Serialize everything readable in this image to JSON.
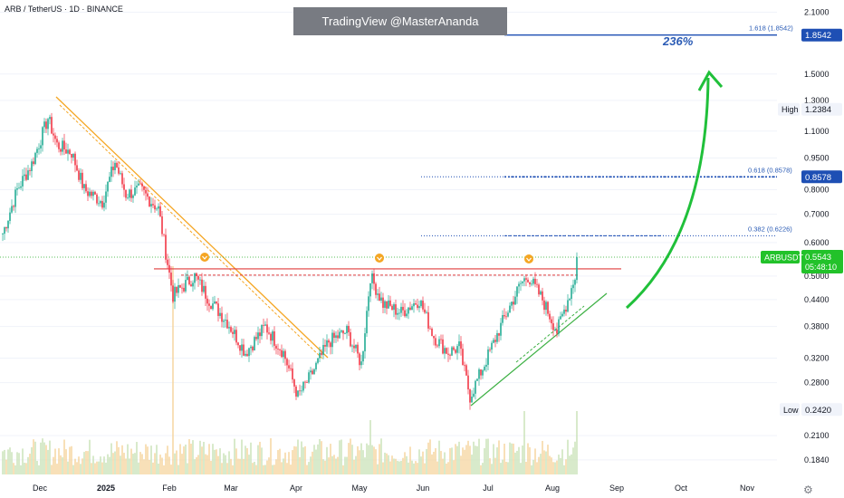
{
  "header": {
    "symbol_title": "ARB / TetherUS · 1D · BINANCE",
    "watermark": "TradingView @MasterAnanda",
    "gain_label": "236%"
  },
  "colors": {
    "up": "#22ab94",
    "down": "#f23645",
    "vol_up": "#c8e2b5",
    "vol_down": "#f5d39a",
    "accent_blue": "#1e4fb4",
    "green_arrow": "#20c03a",
    "resistance": "#e03c3c",
    "orange_trend": "#f5a623"
  },
  "icons": {
    "settings": "gear-icon"
  },
  "chart_data": {
    "type": "candlestick",
    "symbol": "ARBUSDT",
    "exchange": "BINANCE",
    "interval": "1D",
    "y_scale": "log",
    "ylim": [
      0.17,
      2.2
    ],
    "y_ticks": [
      {
        "v": 2.1,
        "label": "2.1000"
      },
      {
        "v": 1.5,
        "label": "1.5000"
      },
      {
        "v": 1.3,
        "label": "1.3000"
      },
      {
        "v": 1.1,
        "label": "1.1000"
      },
      {
        "v": 0.95,
        "label": "0.9500"
      },
      {
        "v": 0.8,
        "label": "0.8000"
      },
      {
        "v": 0.7,
        "label": "0.7000"
      },
      {
        "v": 0.6,
        "label": "0.6000"
      },
      {
        "v": 0.5,
        "label": "0.5000"
      },
      {
        "v": 0.44,
        "label": "0.4400"
      },
      {
        "v": 0.38,
        "label": "0.3800"
      },
      {
        "v": 0.32,
        "label": "0.3200"
      },
      {
        "v": 0.28,
        "label": "0.2800"
      },
      {
        "v": 0.21,
        "label": "0.2100"
      },
      {
        "v": 0.184,
        "label": "0.1840"
      }
    ],
    "x_ticks": [
      "Dec",
      "2025",
      "Feb",
      "Mar",
      "Apr",
      "May",
      "Jun",
      "Jul",
      "Aug",
      "Sep",
      "Oct",
      "Nov"
    ],
    "price_tags": [
      {
        "name": "fib-target-tag",
        "value": "1.8542",
        "v": 1.8542
      },
      {
        "name": "high-tag",
        "value": "1.2384",
        "v": 1.2384,
        "label": "High"
      },
      {
        "name": "fib-618-tag",
        "value": "0.8578",
        "v": 0.8578
      },
      {
        "name": "current-price-tag",
        "value": "0.5543",
        "v": 0.5543,
        "label": "ARBUSDT",
        "countdown": "05:48:10"
      },
      {
        "name": "low-tag",
        "value": "0.2420",
        "v": 0.242,
        "label": "Low"
      }
    ],
    "fib_levels": [
      {
        "label": "1.618 (1.8542)",
        "v": 1.8542
      },
      {
        "label": "0.618 (0.8578)",
        "v": 0.8578
      },
      {
        "label": "0.382 (0.6226)",
        "v": 0.6226
      }
    ],
    "resistance": 0.52,
    "anchors": [
      {
        "d": 0,
        "p": 0.63
      },
      {
        "d": 8,
        "p": 0.8
      },
      {
        "d": 16,
        "p": 0.92
      },
      {
        "d": 25,
        "p": 1.18
      },
      {
        "d": 30,
        "p": 1.02
      },
      {
        "d": 38,
        "p": 0.98
      },
      {
        "d": 45,
        "p": 0.8
      },
      {
        "d": 55,
        "p": 0.75
      },
      {
        "d": 62,
        "p": 0.93
      },
      {
        "d": 68,
        "p": 0.78
      },
      {
        "d": 76,
        "p": 0.8
      },
      {
        "d": 86,
        "p": 0.72
      },
      {
        "d": 94,
        "p": 0.45
      },
      {
        "d": 106,
        "p": 0.5
      },
      {
        "d": 114,
        "p": 0.44
      },
      {
        "d": 124,
        "p": 0.39
      },
      {
        "d": 134,
        "p": 0.33
      },
      {
        "d": 145,
        "p": 0.38
      },
      {
        "d": 155,
        "p": 0.33
      },
      {
        "d": 163,
        "p": 0.26
      },
      {
        "d": 170,
        "p": 0.29
      },
      {
        "d": 180,
        "p": 0.35
      },
      {
        "d": 190,
        "p": 0.37
      },
      {
        "d": 198,
        "p": 0.31
      },
      {
        "d": 203,
        "p": 0.5
      },
      {
        "d": 210,
        "p": 0.43
      },
      {
        "d": 220,
        "p": 0.41
      },
      {
        "d": 230,
        "p": 0.44
      },
      {
        "d": 238,
        "p": 0.36
      },
      {
        "d": 246,
        "p": 0.33
      },
      {
        "d": 252,
        "p": 0.34
      },
      {
        "d": 258,
        "p": 0.26
      },
      {
        "d": 266,
        "p": 0.31
      },
      {
        "d": 276,
        "p": 0.39
      },
      {
        "d": 286,
        "p": 0.48
      },
      {
        "d": 290,
        "p": 0.5
      },
      {
        "d": 298,
        "p": 0.44
      },
      {
        "d": 306,
        "p": 0.37
      },
      {
        "d": 312,
        "p": 0.44
      },
      {
        "d": 316,
        "p": 0.5
      },
      {
        "d": 317,
        "p": 0.5543
      }
    ]
  }
}
